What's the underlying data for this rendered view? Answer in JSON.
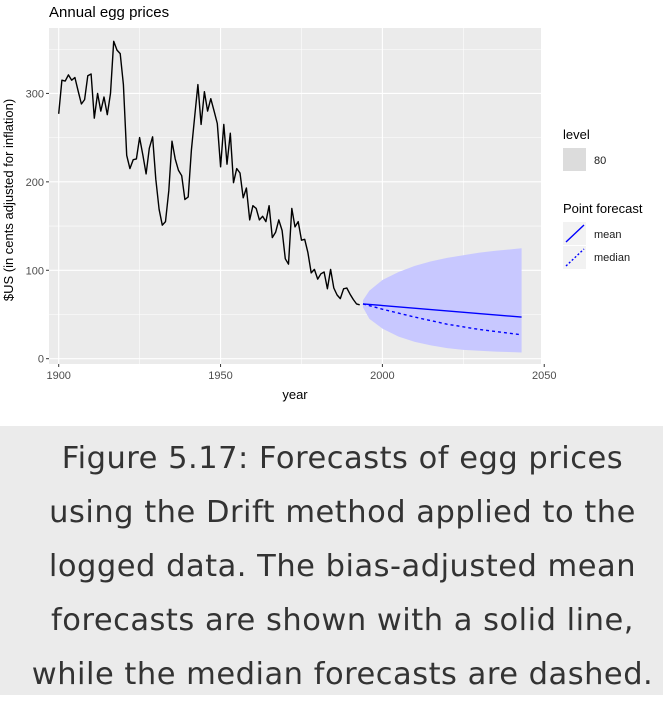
{
  "chart_data": {
    "type": "line",
    "title": "Annual egg prices",
    "xlabel": "year",
    "ylabel": "$US (in cents adjusted for inflation)",
    "xlim": [
      1897,
      2049
    ],
    "ylim": [
      -6,
      374
    ],
    "xticks": [
      1900,
      1950,
      2000,
      2050
    ],
    "yticks": [
      0,
      100,
      200,
      300
    ],
    "grid": true,
    "legend_position": "right",
    "series": [
      {
        "name": "",
        "x": [
          1900,
          1901,
          1902,
          1903,
          1904,
          1905,
          1906,
          1907,
          1908,
          1909,
          1910,
          1911,
          1912,
          1913,
          1914,
          1915,
          1916,
          1917,
          1918,
          1919,
          1920,
          1921,
          1922,
          1923,
          1924,
          1925,
          1926,
          1927,
          1928,
          1929,
          1930,
          1931,
          1932,
          1933,
          1934,
          1935,
          1936,
          1937,
          1938,
          1939,
          1940,
          1941,
          1942,
          1943,
          1944,
          1945,
          1946,
          1947,
          1948,
          1949,
          1950,
          1951,
          1952,
          1953,
          1954,
          1955,
          1956,
          1957,
          1958,
          1959,
          1960,
          1961,
          1962,
          1963,
          1964,
          1965,
          1966,
          1967,
          1968,
          1969,
          1970,
          1971,
          1972,
          1973,
          1974,
          1975,
          1976,
          1977,
          1978,
          1979,
          1980,
          1981,
          1982,
          1983,
          1984,
          1985,
          1986,
          1987,
          1988,
          1989,
          1990,
          1991,
          1992,
          1993
        ],
        "y": [
          277,
          315,
          314,
          321,
          315,
          318,
          303,
          288,
          293,
          320,
          322,
          272,
          300,
          280,
          296,
          276,
          300,
          359,
          349,
          345,
          310,
          230,
          215,
          225,
          226,
          250,
          230,
          209,
          238,
          251,
          203,
          169,
          151,
          155,
          190,
          246,
          226,
          213,
          207,
          180,
          183,
          236,
          274,
          310,
          265,
          302,
          280,
          294,
          280,
          266,
          217,
          265,
          220,
          255,
          199,
          215,
          210,
          182,
          193,
          157,
          173,
          170,
          157,
          161,
          155,
          173,
          137,
          143,
          157,
          145,
          113,
          107,
          170,
          149,
          155,
          134,
          135,
          120,
          97,
          101,
          90,
          96,
          98,
          79,
          101,
          80,
          72,
          68,
          79,
          80,
          73,
          67,
          62,
          61
        ]
      },
      {
        "name": "mean",
        "x": [
          1994,
          2043
        ],
        "y": [
          62,
          47
        ]
      },
      {
        "name": "median",
        "x": [
          1994,
          2000,
          2010,
          2020,
          2030,
          2043
        ],
        "y": [
          62,
          56,
          47,
          39,
          33,
          27
        ]
      }
    ],
    "interval": {
      "level": 80,
      "x": [
        1994,
        1996,
        2000,
        2005,
        2010,
        2015,
        2020,
        2025,
        2030,
        2035,
        2043
      ],
      "lower": [
        58,
        45,
        34,
        25,
        19,
        15,
        12,
        10,
        9,
        8,
        7
      ],
      "upper": [
        66,
        77,
        89,
        98,
        105,
        110,
        114,
        117,
        120,
        122,
        125
      ]
    },
    "legend": {
      "level_title": "level",
      "level_value": "80",
      "forecast_title": "Point forecast",
      "forecast_items": [
        "mean",
        "median"
      ]
    },
    "colors": {
      "panel": "#ebebeb",
      "grid": "#ffffff",
      "history": "#000000",
      "forecast": "#0000ff",
      "interval": "#c8c8ff"
    }
  },
  "caption": "Figure 5.17: Forecasts of egg prices using the Drift method applied to the logged data. The bias-adjusted mean forecasts are shown with a solid line, while the median forecasts are dashed."
}
